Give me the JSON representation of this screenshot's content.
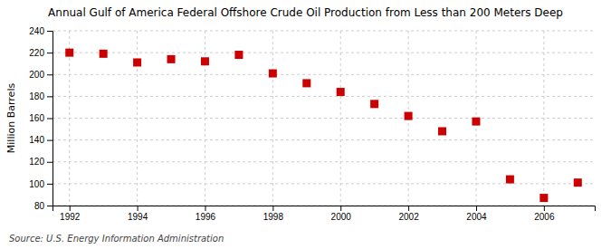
{
  "chart_data": {
    "type": "scatter",
    "title": "Annual Gulf of America Federal Offshore Crude Oil Production from Less than 200 Meters Deep",
    "ylabel": "Million Barrels",
    "source": "Source: U.S. Energy Information Administration",
    "x": [
      1992,
      1993,
      1994,
      1995,
      1996,
      1997,
      1998,
      1999,
      2000,
      2001,
      2002,
      2003,
      2004,
      2005,
      2006,
      2007
    ],
    "values": [
      220,
      219,
      211,
      214,
      212,
      218,
      201,
      192,
      184,
      173,
      162,
      148,
      157,
      104,
      87,
      101
    ],
    "color": "#cc0000",
    "marker": "square",
    "xlim": [
      1991.5,
      2007.5
    ],
    "ylim": [
      80,
      240
    ],
    "xticks": [
      1992,
      1994,
      1996,
      1998,
      2000,
      2002,
      2004,
      2006
    ],
    "yticks": [
      80,
      100,
      120,
      140,
      160,
      180,
      200,
      220,
      240
    ],
    "grid": true
  }
}
